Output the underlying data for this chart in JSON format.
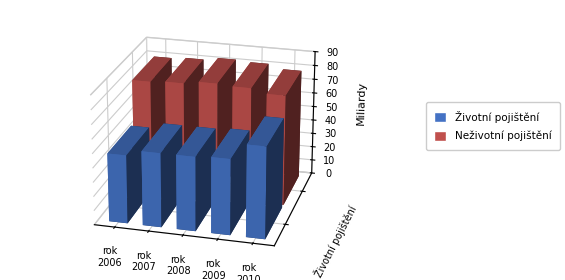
{
  "years": [
    "rok\n2006",
    "rok\n2007",
    "rok\n2008",
    "rok\n2009",
    "rok\n2010"
  ],
  "zivotni": [
    48,
    52,
    52,
    53,
    64
  ],
  "nezivotni": [
    79,
    80,
    82,
    81,
    78
  ],
  "color_zivotni": "#4472C4",
  "color_nezivotni": "#C0504D",
  "zlabel": "Miliardy",
  "xlabel_3d": "Životní pojištění",
  "legend_zivotni": "Životní pojištění",
  "legend_nezivotni": "Neživotní pojištění",
  "zticks": [
    0,
    10,
    20,
    30,
    40,
    50,
    60,
    70,
    80,
    90
  ],
  "zlim": [
    0,
    90
  ],
  "bar_width": 0.55,
  "bar_depth": 0.55,
  "elev": 22,
  "azim": -75
}
